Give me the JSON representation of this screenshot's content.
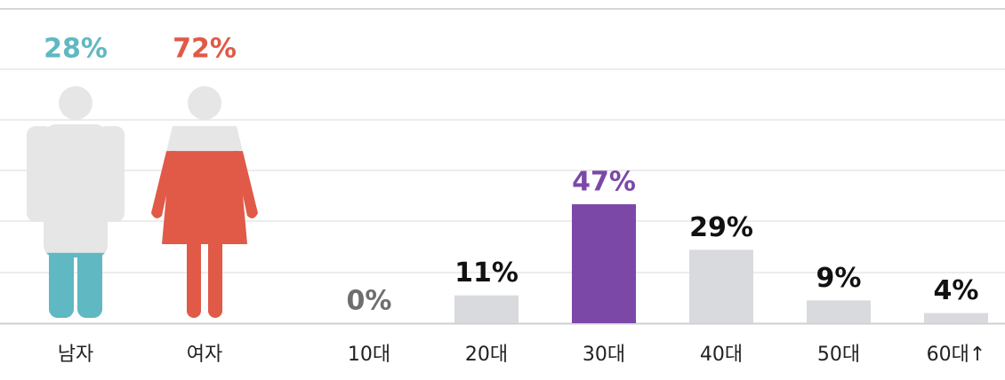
{
  "chart_data": [
    {
      "type": "pictogram",
      "categories": [
        "남자",
        "여자"
      ],
      "values": [
        28,
        72
      ],
      "value_labels": [
        "28%",
        "72%"
      ],
      "colors": [
        "#5fb8c2",
        "#e05a47"
      ],
      "ylim": [
        0,
        100
      ]
    },
    {
      "type": "bar",
      "categories": [
        "10대",
        "20대",
        "30대",
        "40대",
        "50대",
        "60대↑"
      ],
      "values": [
        0,
        11,
        47,
        29,
        9,
        4
      ],
      "value_labels": [
        "0%",
        "11%",
        "47%",
        "29%",
        "9%",
        "4%"
      ],
      "colors": [
        "#d9dade",
        "#d9dade",
        "#7b48a8",
        "#d9dade",
        "#d9dade",
        "#d9dade"
      ],
      "label_colors": [
        "#6e6e6e",
        "#111111",
        "#7b48a8",
        "#111111",
        "#111111",
        "#111111"
      ],
      "ylim": [
        0,
        100
      ]
    }
  ]
}
